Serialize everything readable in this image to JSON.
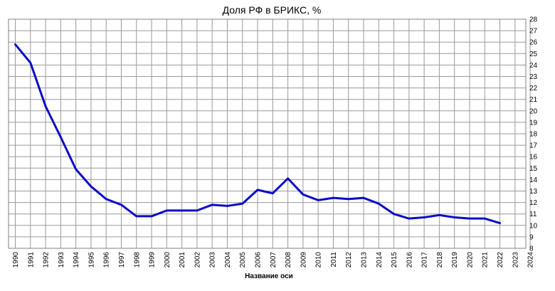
{
  "chart_data": {
    "type": "line",
    "title": "Доля РФ в БРИКС, %",
    "xlabel": "Название оси",
    "ylabel": "",
    "x": [
      "1990",
      "1991",
      "1992",
      "1993",
      "1994",
      "1995",
      "1996",
      "1997",
      "1998",
      "1999",
      "2000",
      "2001",
      "2002",
      "2003",
      "2004",
      "2005",
      "2006",
      "2007",
      "2008",
      "2009",
      "2010",
      "2011",
      "2012",
      "2013",
      "2014",
      "2015",
      "2016",
      "2017",
      "2018",
      "2019",
      "2020",
      "2021",
      "2022",
      "2023",
      "2024"
    ],
    "series": [
      {
        "values": [
          25.8,
          24.2,
          20.4,
          17.7,
          14.9,
          13.4,
          12.3,
          11.8,
          10.8,
          10.8,
          11.3,
          11.3,
          11.3,
          11.8,
          11.7,
          11.9,
          13.1,
          12.8,
          14.1,
          12.7,
          12.2,
          12.4,
          12.3,
          12.4,
          11.9,
          11.0,
          10.6,
          10.7,
          10.9,
          10.7,
          10.6,
          10.6,
          10.2,
          null,
          null
        ],
        "color": "#0a0ac8"
      }
    ],
    "ylim": [
      8,
      28
    ],
    "y_ticks": [
      "8",
      "9",
      "10",
      "11",
      "12",
      "13",
      "14",
      "15",
      "16",
      "17",
      "18",
      "19",
      "20",
      "21",
      "22",
      "23",
      "24",
      "25",
      "26",
      "27",
      "28"
    ],
    "grid": true,
    "y_axis_position": "right"
  }
}
